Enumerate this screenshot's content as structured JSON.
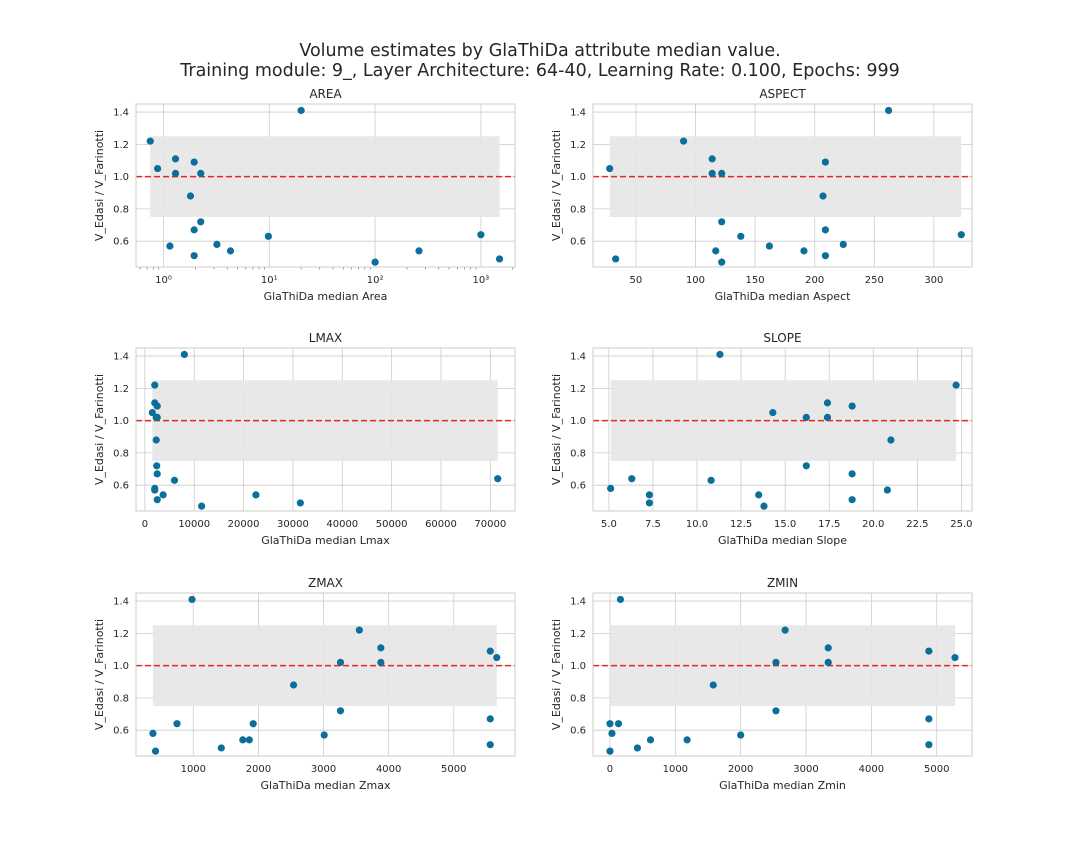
{
  "figure": {
    "title_line1": "Volume estimates by GlaThiDa attribute median value.",
    "title_line2": "Training module: 9_, Layer Architecture: 64-40, Learning Rate: 0.100, Epochs: 999"
  },
  "style": {
    "point_color": "#0c6e99",
    "reference_line_color": "#e6261f",
    "band_color": "#e5e5e5",
    "grid_color": "#cccccc",
    "axes_edge_color": "#cccccc"
  },
  "chart_data": [
    {
      "type": "scatter",
      "title": "AREA",
      "xlabel": "GlaThiDa median Area",
      "ylabel": "V_Edasi / V_Farinotti",
      "xscale": "log",
      "xlim": [
        0.55,
        2100
      ],
      "ylim": [
        0.44,
        1.45
      ],
      "xticks": [
        1,
        10,
        100,
        1000
      ],
      "xticklabels": [
        "10⁰",
        "10¹",
        "10²",
        "10³"
      ],
      "yticks": [
        0.6,
        0.8,
        1.0,
        1.2,
        1.4
      ],
      "yticklabels": [
        "0.6",
        "0.8",
        "1.0",
        "1.2",
        "1.4"
      ],
      "reference_line": 1.0,
      "band": {
        "y": [
          0.75,
          1.25
        ],
        "x": [
          0.75,
          1500
        ]
      },
      "points": [
        {
          "x": 0.75,
          "y": 1.22
        },
        {
          "x": 0.88,
          "y": 1.05
        },
        {
          "x": 1.15,
          "y": 0.57
        },
        {
          "x": 1.3,
          "y": 1.11
        },
        {
          "x": 1.3,
          "y": 1.02
        },
        {
          "x": 1.8,
          "y": 0.88
        },
        {
          "x": 1.95,
          "y": 1.09
        },
        {
          "x": 1.95,
          "y": 0.67
        },
        {
          "x": 1.95,
          "y": 0.51
        },
        {
          "x": 2.25,
          "y": 1.02
        },
        {
          "x": 2.25,
          "y": 0.72
        },
        {
          "x": 3.2,
          "y": 0.58
        },
        {
          "x": 4.3,
          "y": 0.54
        },
        {
          "x": 9.8,
          "y": 0.63
        },
        {
          "x": 20,
          "y": 1.41
        },
        {
          "x": 100,
          "y": 0.47
        },
        {
          "x": 260,
          "y": 0.54
        },
        {
          "x": 1000,
          "y": 0.64
        },
        {
          "x": 1500,
          "y": 0.49
        }
      ]
    },
    {
      "type": "scatter",
      "title": "ASPECT",
      "xlabel": "GlaThiDa median Aspect",
      "ylabel": "V_Edasi / V_Farinotti",
      "xscale": "linear",
      "xlim": [
        14,
        332
      ],
      "ylim": [
        0.44,
        1.45
      ],
      "xticks": [
        50,
        100,
        150,
        200,
        250,
        300
      ],
      "xticklabels": [
        "50",
        "100",
        "150",
        "200",
        "250",
        "300"
      ],
      "yticks": [
        0.6,
        0.8,
        1.0,
        1.2,
        1.4
      ],
      "yticklabels": [
        "0.6",
        "0.8",
        "1.0",
        "1.2",
        "1.4"
      ],
      "reference_line": 1.0,
      "band": {
        "y": [
          0.75,
          1.25
        ],
        "x": [
          28,
          323
        ]
      },
      "points": [
        {
          "x": 28,
          "y": 1.05
        },
        {
          "x": 33,
          "y": 0.49
        },
        {
          "x": 90,
          "y": 1.22
        },
        {
          "x": 114,
          "y": 1.11
        },
        {
          "x": 114,
          "y": 1.02
        },
        {
          "x": 117,
          "y": 0.54
        },
        {
          "x": 122,
          "y": 1.02
        },
        {
          "x": 122,
          "y": 0.72
        },
        {
          "x": 122,
          "y": 0.47
        },
        {
          "x": 138,
          "y": 0.63
        },
        {
          "x": 162,
          "y": 0.57
        },
        {
          "x": 191,
          "y": 0.54
        },
        {
          "x": 207,
          "y": 0.88
        },
        {
          "x": 209,
          "y": 1.09
        },
        {
          "x": 209,
          "y": 0.67
        },
        {
          "x": 209,
          "y": 0.51
        },
        {
          "x": 224,
          "y": 0.58
        },
        {
          "x": 262,
          "y": 1.41
        },
        {
          "x": 323,
          "y": 0.64
        }
      ]
    },
    {
      "type": "scatter",
      "title": "LMAX",
      "xlabel": "GlaThiDa median Lmax",
      "ylabel": "V_Edasi / V_Farinotti",
      "xscale": "linear",
      "xlim": [
        -1800,
        75000
      ],
      "ylim": [
        0.44,
        1.45
      ],
      "xticks": [
        0,
        10000,
        20000,
        30000,
        40000,
        50000,
        60000,
        70000
      ],
      "xticklabels": [
        "0",
        "10000",
        "20000",
        "30000",
        "40000",
        "50000",
        "60000",
        "70000"
      ],
      "yticks": [
        0.6,
        0.8,
        1.0,
        1.2,
        1.4
      ],
      "yticklabels": [
        "0.6",
        "0.8",
        "1.0",
        "1.2",
        "1.4"
      ],
      "reference_line": 1.0,
      "band": {
        "y": [
          0.75,
          1.25
        ],
        "x": [
          1500,
          71500
        ]
      },
      "points": [
        {
          "x": 1500,
          "y": 1.05
        },
        {
          "x": 2000,
          "y": 1.22
        },
        {
          "x": 2000,
          "y": 1.11
        },
        {
          "x": 2000,
          "y": 0.58
        },
        {
          "x": 2000,
          "y": 0.57
        },
        {
          "x": 2300,
          "y": 1.02
        },
        {
          "x": 2300,
          "y": 0.88
        },
        {
          "x": 2400,
          "y": 0.72
        },
        {
          "x": 2500,
          "y": 1.09
        },
        {
          "x": 2500,
          "y": 1.02
        },
        {
          "x": 2500,
          "y": 0.67
        },
        {
          "x": 2500,
          "y": 0.51
        },
        {
          "x": 3700,
          "y": 0.54
        },
        {
          "x": 6000,
          "y": 0.63
        },
        {
          "x": 8000,
          "y": 1.41
        },
        {
          "x": 11500,
          "y": 0.47
        },
        {
          "x": 22500,
          "y": 0.54
        },
        {
          "x": 31500,
          "y": 0.49
        },
        {
          "x": 71500,
          "y": 0.64
        }
      ]
    },
    {
      "type": "scatter",
      "title": "SLOPE",
      "xlabel": "GlaThiDa median Slope",
      "ylabel": "V_Edasi / V_Farinotti",
      "xscale": "linear",
      "xlim": [
        4.1,
        25.6
      ],
      "ylim": [
        0.44,
        1.45
      ],
      "xticks": [
        5.0,
        7.5,
        10.0,
        12.5,
        15.0,
        17.5,
        20.0,
        22.5,
        25.0
      ],
      "xticklabels": [
        "5.0",
        "7.5",
        "10.0",
        "12.5",
        "15.0",
        "17.5",
        "20.0",
        "22.5",
        "25.0"
      ],
      "yticks": [
        0.6,
        0.8,
        1.0,
        1.2,
        1.4
      ],
      "yticklabels": [
        "0.6",
        "0.8",
        "1.0",
        "1.2",
        "1.4"
      ],
      "reference_line": 1.0,
      "band": {
        "y": [
          0.75,
          1.25
        ],
        "x": [
          5.1,
          24.7
        ]
      },
      "points": [
        {
          "x": 5.1,
          "y": 0.58
        },
        {
          "x": 6.3,
          "y": 0.64
        },
        {
          "x": 7.3,
          "y": 0.54
        },
        {
          "x": 7.3,
          "y": 0.49
        },
        {
          "x": 10.8,
          "y": 0.63
        },
        {
          "x": 11.3,
          "y": 1.41
        },
        {
          "x": 13.5,
          "y": 0.54
        },
        {
          "x": 13.8,
          "y": 0.47
        },
        {
          "x": 14.3,
          "y": 1.05
        },
        {
          "x": 16.2,
          "y": 1.02
        },
        {
          "x": 16.2,
          "y": 0.72
        },
        {
          "x": 17.4,
          "y": 1.11
        },
        {
          "x": 17.4,
          "y": 1.02
        },
        {
          "x": 18.8,
          "y": 1.09
        },
        {
          "x": 18.8,
          "y": 0.67
        },
        {
          "x": 18.8,
          "y": 0.51
        },
        {
          "x": 20.8,
          "y": 0.57
        },
        {
          "x": 21.0,
          "y": 0.88
        },
        {
          "x": 24.7,
          "y": 1.22
        }
      ]
    },
    {
      "type": "scatter",
      "title": "ZMAX",
      "xlabel": "GlaThiDa median Zmax",
      "ylabel": "V_Edasi / V_Farinotti",
      "xscale": "linear",
      "xlim": [
        120,
        5940
      ],
      "ylim": [
        0.44,
        1.45
      ],
      "xticks": [
        1000,
        2000,
        3000,
        4000,
        5000
      ],
      "xticklabels": [
        "1000",
        "2000",
        "3000",
        "4000",
        "5000"
      ],
      "yticks": [
        0.6,
        0.8,
        1.0,
        1.2,
        1.4
      ],
      "yticklabels": [
        "0.6",
        "0.8",
        "1.0",
        "1.2",
        "1.4"
      ],
      "reference_line": 1.0,
      "band": {
        "y": [
          0.75,
          1.25
        ],
        "x": [
          380,
          5660
        ]
      },
      "points": [
        {
          "x": 380,
          "y": 0.58
        },
        {
          "x": 420,
          "y": 0.47
        },
        {
          "x": 750,
          "y": 0.64
        },
        {
          "x": 980,
          "y": 1.41
        },
        {
          "x": 1430,
          "y": 0.49
        },
        {
          "x": 1760,
          "y": 0.54
        },
        {
          "x": 1860,
          "y": 0.54
        },
        {
          "x": 1920,
          "y": 0.64
        },
        {
          "x": 2540,
          "y": 0.88
        },
        {
          "x": 3010,
          "y": 0.57
        },
        {
          "x": 3260,
          "y": 1.02
        },
        {
          "x": 3260,
          "y": 0.72
        },
        {
          "x": 3550,
          "y": 1.22
        },
        {
          "x": 3880,
          "y": 1.11
        },
        {
          "x": 3880,
          "y": 1.02
        },
        {
          "x": 5560,
          "y": 1.09
        },
        {
          "x": 5560,
          "y": 0.67
        },
        {
          "x": 5560,
          "y": 0.51
        },
        {
          "x": 5660,
          "y": 1.05
        }
      ]
    },
    {
      "type": "scatter",
      "title": "ZMIN",
      "xlabel": "GlaThiDa median Zmin",
      "ylabel": "V_Edasi / V_Farinotti",
      "xscale": "linear",
      "xlim": [
        -260,
        5540
      ],
      "ylim": [
        0.44,
        1.45
      ],
      "xticks": [
        0,
        1000,
        2000,
        3000,
        4000,
        5000
      ],
      "xticklabels": [
        "0",
        "1000",
        "2000",
        "3000",
        "4000",
        "5000"
      ],
      "yticks": [
        0.6,
        0.8,
        1.0,
        1.2,
        1.4
      ],
      "yticklabels": [
        "0.6",
        "0.8",
        "1.0",
        "1.2",
        "1.4"
      ],
      "reference_line": 1.0,
      "band": {
        "y": [
          0.75,
          1.25
        ],
        "x": [
          0,
          5280
        ]
      },
      "points": [
        {
          "x": 0,
          "y": 0.64
        },
        {
          "x": 0,
          "y": 0.47
        },
        {
          "x": 30,
          "y": 0.58
        },
        {
          "x": 130,
          "y": 0.64
        },
        {
          "x": 160,
          "y": 1.41
        },
        {
          "x": 420,
          "y": 0.49
        },
        {
          "x": 620,
          "y": 0.54
        },
        {
          "x": 1180,
          "y": 0.54
        },
        {
          "x": 1580,
          "y": 0.88
        },
        {
          "x": 2000,
          "y": 0.57
        },
        {
          "x": 2540,
          "y": 1.02
        },
        {
          "x": 2540,
          "y": 0.72
        },
        {
          "x": 2680,
          "y": 1.22
        },
        {
          "x": 3340,
          "y": 1.11
        },
        {
          "x": 3340,
          "y": 1.02
        },
        {
          "x": 4880,
          "y": 1.09
        },
        {
          "x": 4880,
          "y": 0.67
        },
        {
          "x": 4880,
          "y": 0.51
        },
        {
          "x": 5280,
          "y": 1.05
        }
      ]
    }
  ]
}
